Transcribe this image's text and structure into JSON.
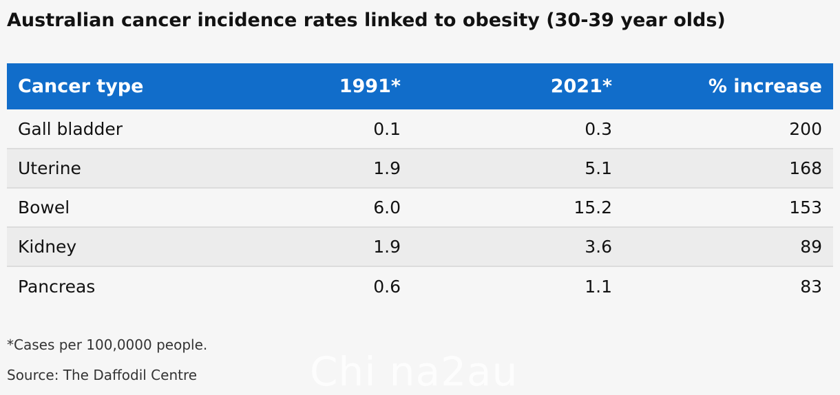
{
  "title": "Australian cancer incidence rates linked to obesity (30-39 year olds)",
  "chart_data": {
    "type": "table",
    "columns": [
      "Cancer type",
      "1991*",
      "2021*",
      "% increase"
    ],
    "rows": [
      [
        "Gall bladder",
        "0.1",
        "0.3",
        "200"
      ],
      [
        "Uterine",
        "1.9",
        "5.1",
        "168"
      ],
      [
        "Bowel",
        "6.0",
        "15.2",
        "153"
      ],
      [
        "Kidney",
        "1.9",
        "3.6",
        "89"
      ],
      [
        "Pancreas",
        "0.6",
        "1.1",
        "83"
      ]
    ]
  },
  "footnote": "*Cases per 100,0000 people.",
  "source": "Source: The Daffodil Centre",
  "watermark": "Chi na2au",
  "colors": {
    "header_bg": "#116dca",
    "header_text": "#ffffff",
    "background": "#f6f6f6",
    "alt_row": "#ececec"
  }
}
